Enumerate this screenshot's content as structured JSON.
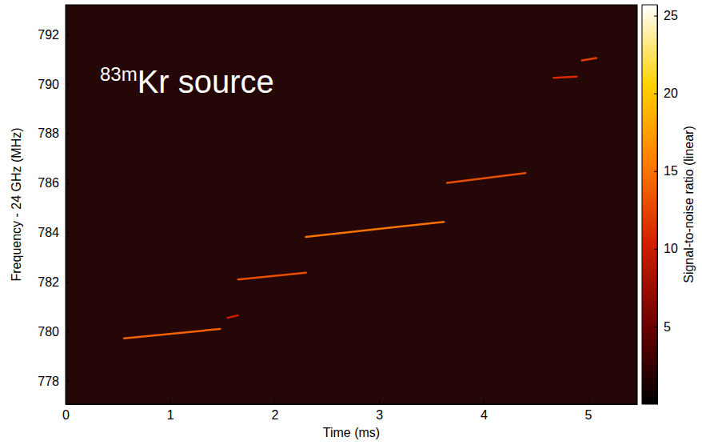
{
  "chart_data": {
    "type": "spectrogram",
    "annotation": {
      "superscript": "83m",
      "text": "Kr source"
    },
    "x_label": "Time (ms)",
    "y_label": "Frequency - 24 GHz (MHz)",
    "xlim": [
      0,
      5.47
    ],
    "ylim": [
      777.06,
      793.2
    ],
    "xticks": [
      0,
      1,
      2,
      3,
      4,
      5
    ],
    "yticks": [
      778,
      780,
      782,
      784,
      786,
      788,
      790,
      792
    ],
    "tracks": [
      {
        "t": [
          0.56,
          1.48
        ],
        "f": [
          779.72,
          780.1
        ],
        "snr": 14
      },
      {
        "t": [
          1.55,
          1.65
        ],
        "f": [
          780.55,
          780.65
        ],
        "snr": 10
      },
      {
        "t": [
          1.65,
          2.3
        ],
        "f": [
          782.1,
          782.37
        ],
        "snr": 13
      },
      {
        "t": [
          2.3,
          3.62
        ],
        "f": [
          783.82,
          784.43
        ],
        "snr": 15
      },
      {
        "t": [
          3.65,
          4.4
        ],
        "f": [
          786.0,
          786.4
        ],
        "snr": 13
      },
      {
        "t": [
          4.67,
          4.89
        ],
        "f": [
          790.25,
          790.3
        ],
        "snr": 11
      },
      {
        "t": [
          4.94,
          5.08
        ],
        "f": [
          790.95,
          791.05
        ],
        "snr": 12
      }
    ],
    "colorbar": {
      "label": "Signal-to-noise ratio (linear)",
      "range": [
        0,
        25.7
      ],
      "ticks": [
        5,
        10,
        15,
        20,
        25
      ]
    }
  }
}
